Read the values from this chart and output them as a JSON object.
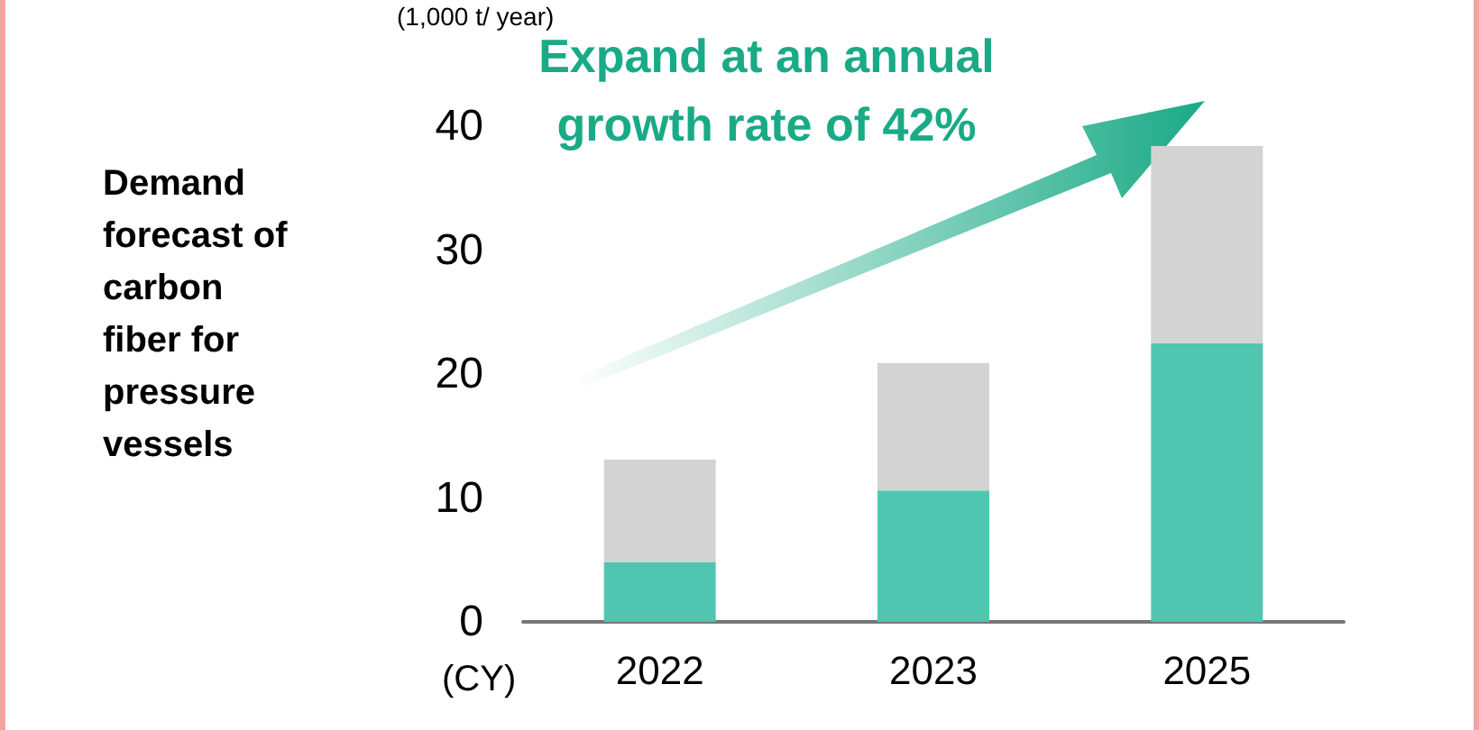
{
  "chart_data": {
    "type": "bar",
    "title": "Demand forecast of carbon fiber for pressure vessels",
    "ylabel": "(1,000 t/ year)",
    "xlabel": "(CY)",
    "annotations": [
      "Expand at an annual growth rate of 42%"
    ],
    "categories": [
      "2022",
      "2023",
      "2025"
    ],
    "stacked": true,
    "series": [
      {
        "color": "#50c6b0",
        "values": [
          4.8,
          10.6,
          22.5
        ]
      },
      {
        "color": "#d3d3d3",
        "values": [
          8.3,
          10.3,
          15.9
        ]
      }
    ],
    "ylim": [
      0,
      40
    ],
    "yticks": [
      0,
      10,
      20,
      30,
      40
    ]
  }
}
